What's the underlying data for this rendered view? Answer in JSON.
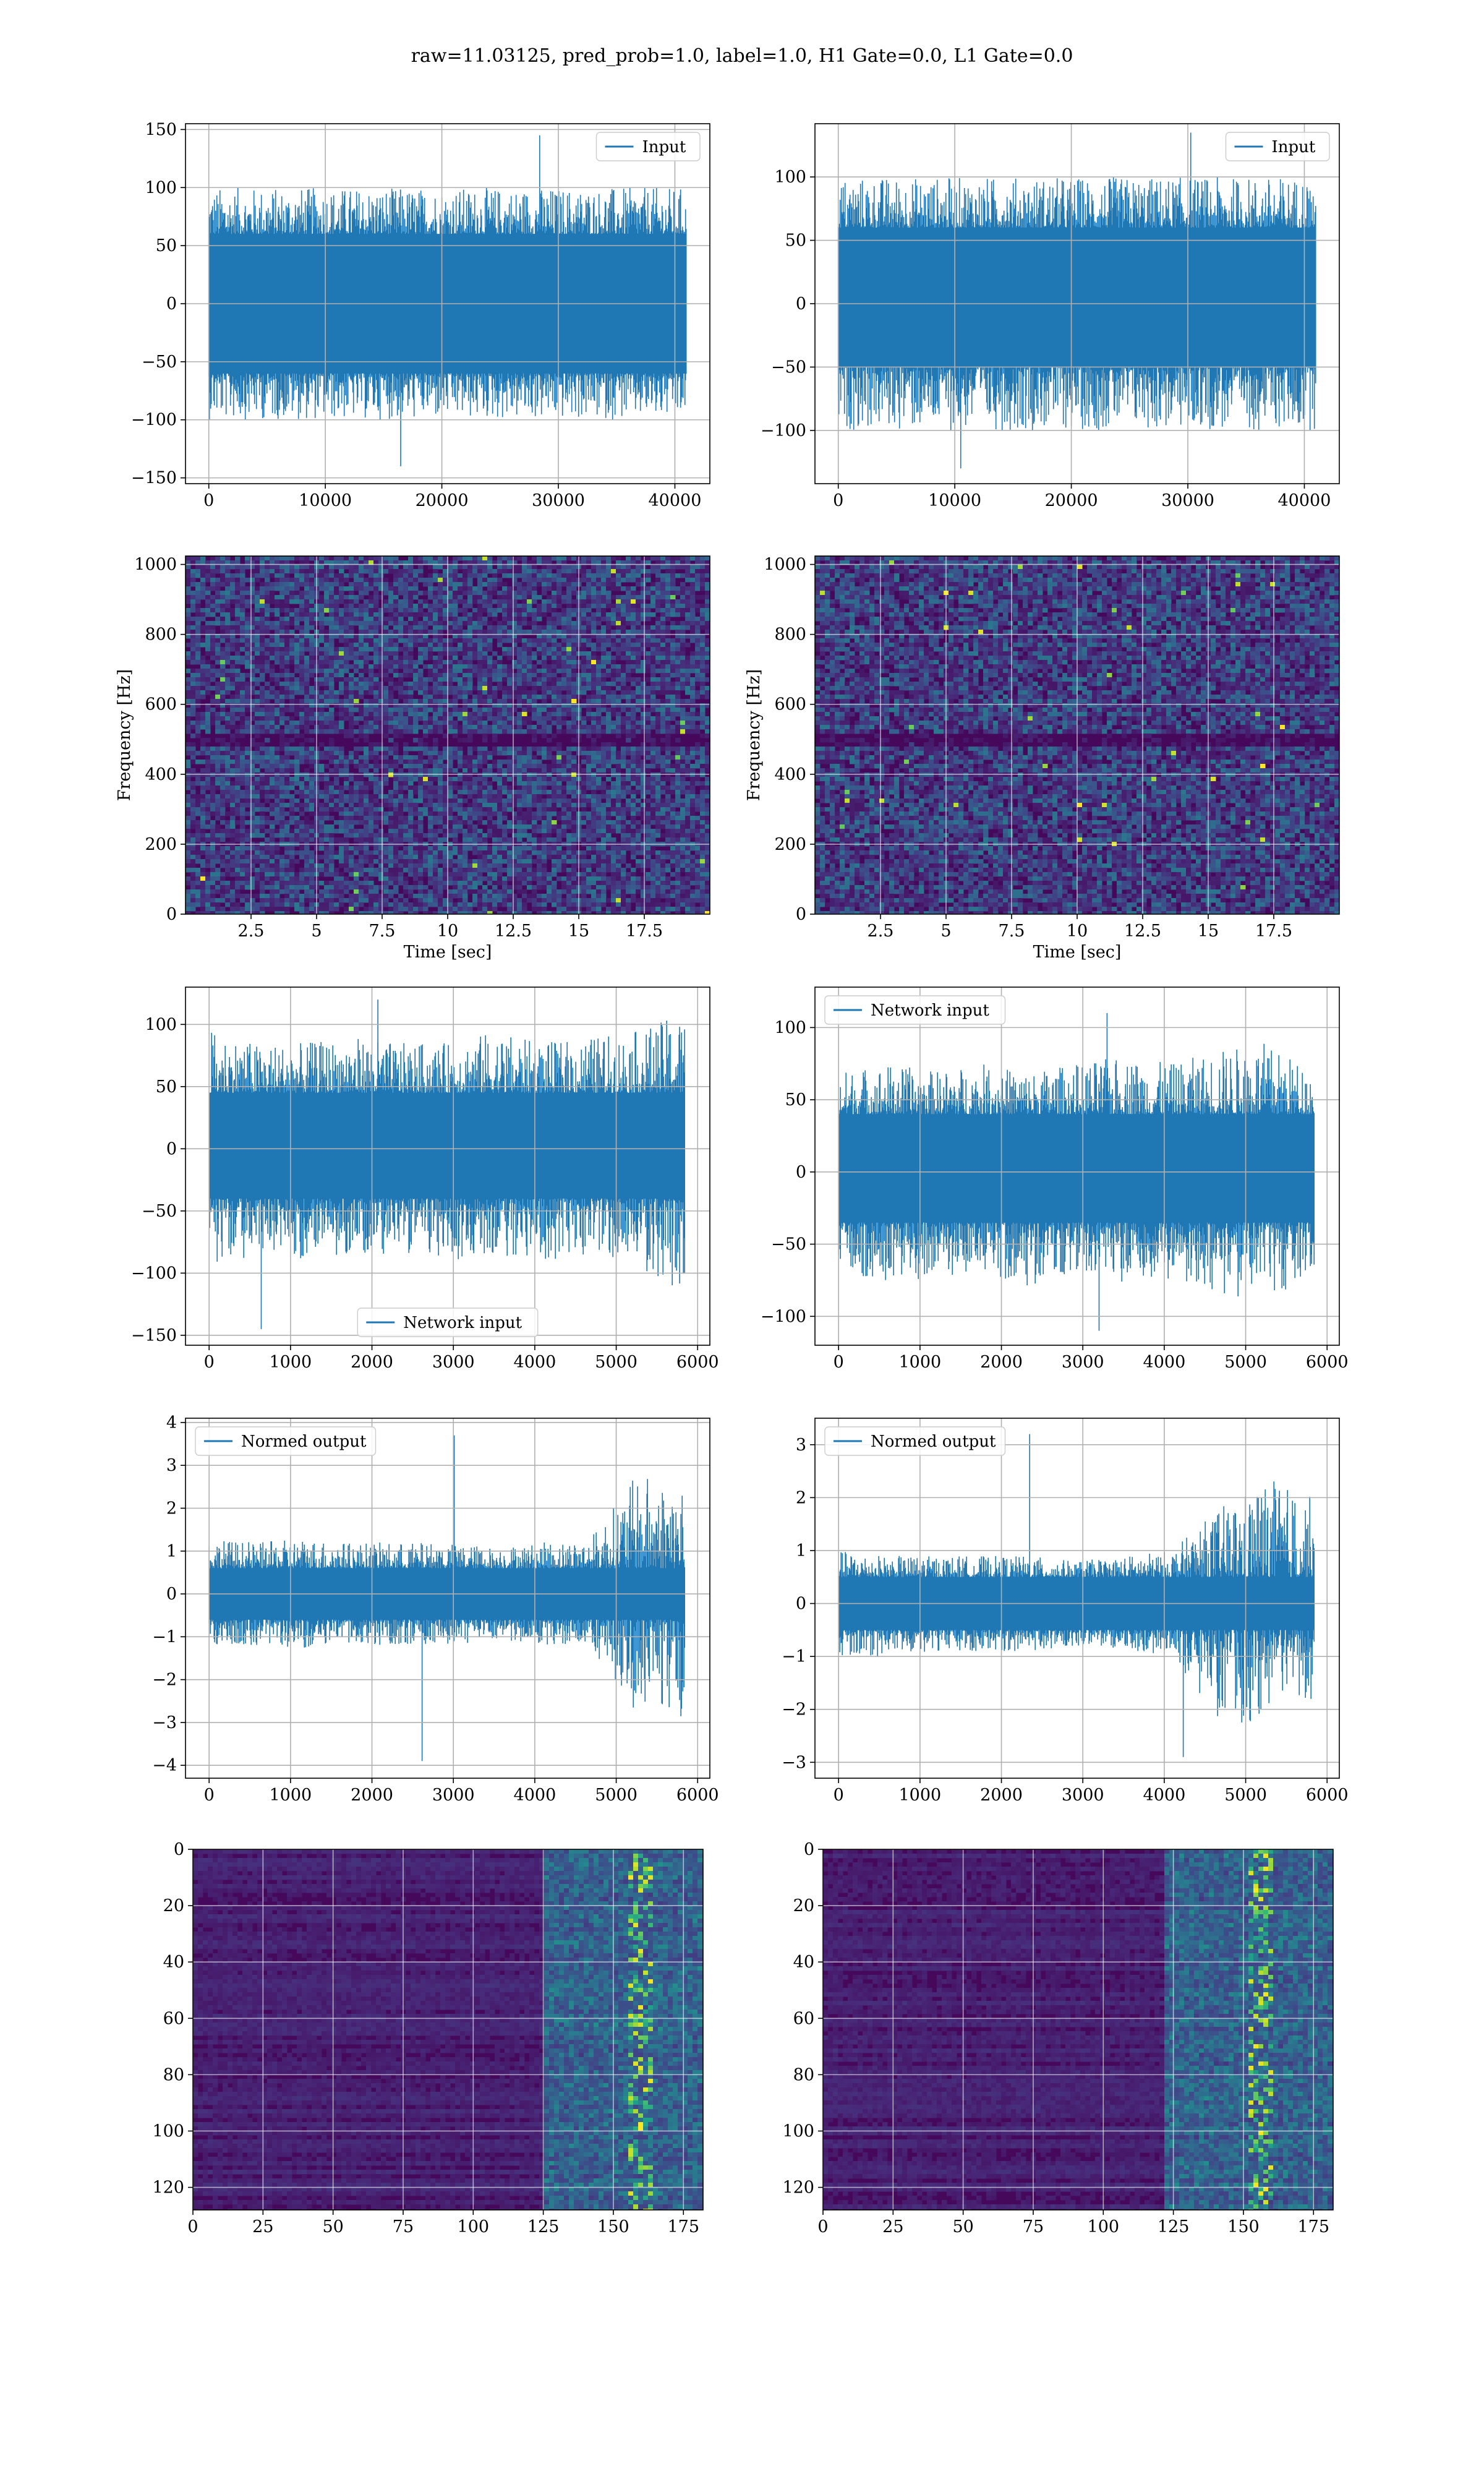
{
  "figure": {
    "suptitle": "raw=11.03125, pred_prob=1.0, label=1.0, H1 Gate=0.0, L1 Gate=0.0",
    "line_color": "#1f77b4"
  },
  "chart_data": [
    {
      "id": "r0c0",
      "type": "line",
      "title": "",
      "xlabel": "",
      "ylabel": "",
      "legend": "Input",
      "legend_loc": "upper right",
      "xlim": [
        -2000,
        43000
      ],
      "ylim": [
        -155,
        155
      ],
      "xticks": [
        0,
        10000,
        20000,
        30000,
        40000
      ],
      "yticks": [
        -150,
        -100,
        -50,
        0,
        50,
        100,
        150
      ],
      "grid": true,
      "series": [
        {
          "name": "Input",
          "x_range": [
            0,
            40960
          ],
          "n_points": 40960,
          "envelope_upper": [
            100,
            100,
            100,
            100,
            100,
            100,
            100,
            100,
            100,
            100,
            100
          ],
          "envelope_lower": [
            -100,
            -100,
            -100,
            -100,
            -100,
            -100,
            -100,
            -100,
            -100,
            -100,
            -100
          ],
          "body": [
            -60,
            60
          ],
          "peak_max": 145,
          "peak_min": -140
        }
      ]
    },
    {
      "id": "r0c1",
      "type": "line",
      "title": "",
      "xlabel": "",
      "ylabel": "",
      "legend": "Input",
      "legend_loc": "upper right",
      "xlim": [
        -2000,
        43000
      ],
      "ylim": [
        -142,
        142
      ],
      "xticks": [
        0,
        10000,
        20000,
        30000,
        40000
      ],
      "yticks": [
        -100,
        -50,
        0,
        50,
        100
      ],
      "grid": true,
      "series": [
        {
          "name": "Input",
          "x_range": [
            0,
            40960
          ],
          "n_points": 40960,
          "envelope_upper": [
            100,
            100,
            100,
            100,
            100,
            100,
            100,
            100,
            100,
            100,
            100
          ],
          "envelope_lower": [
            -100,
            -100,
            -100,
            -100,
            -100,
            -100,
            -100,
            -100,
            -100,
            -100,
            -100
          ],
          "body": [
            -50,
            60
          ],
          "peak_max": 135,
          "peak_min": -130
        }
      ]
    },
    {
      "id": "r1c0",
      "type": "heatmap",
      "title": "",
      "xlabel": "Time [sec]",
      "ylabel": "Frequency [Hz]",
      "xlim": [
        0,
        20
      ],
      "ylim": [
        0,
        1024
      ],
      "xticks": [
        2.5,
        5.0,
        7.5,
        10.0,
        12.5,
        15.0,
        17.5
      ],
      "yticks": [
        0,
        200,
        400,
        600,
        800,
        1000
      ],
      "grid": true,
      "colormap": "viridis",
      "features": {
        "dark_band_hz": 500
      }
    },
    {
      "id": "r1c1",
      "type": "heatmap",
      "title": "",
      "xlabel": "Time [sec]",
      "ylabel": "Frequency [Hz]",
      "xlim": [
        0,
        20
      ],
      "ylim": [
        0,
        1024
      ],
      "xticks": [
        2.5,
        5.0,
        7.5,
        10.0,
        12.5,
        15.0,
        17.5
      ],
      "yticks": [
        0,
        200,
        400,
        600,
        800,
        1000
      ],
      "grid": true,
      "colormap": "viridis",
      "features": {
        "dark_band_hz": 500
      }
    },
    {
      "id": "r2c0",
      "type": "line",
      "title": "",
      "xlabel": "",
      "ylabel": "",
      "legend": "Network input",
      "legend_loc": "lower center",
      "xlim": [
        -290,
        6150
      ],
      "ylim": [
        -158,
        130
      ],
      "xticks": [
        0,
        1000,
        2000,
        3000,
        4000,
        5000,
        6000
      ],
      "yticks": [
        -150,
        -100,
        -50,
        0,
        50,
        100
      ],
      "grid": true,
      "series": [
        {
          "name": "Network input",
          "x_range": [
            0,
            5840
          ],
          "n_points": 5840,
          "envelope_upper": [
            95,
            85,
            85,
            90,
            85,
            85,
            95,
            85,
            90,
            95,
            110
          ],
          "envelope_lower": [
            -95,
            -85,
            -90,
            -85,
            -85,
            -90,
            -85,
            -90,
            -85,
            -95,
            -120
          ],
          "body": [
            -40,
            45
          ],
          "peak_max": 120,
          "peak_min": -145
        }
      ]
    },
    {
      "id": "r2c1",
      "type": "line",
      "title": "",
      "xlabel": "",
      "ylabel": "",
      "legend": "Network input",
      "legend_loc": "upper left",
      "xlim": [
        -290,
        6150
      ],
      "ylim": [
        -120,
        128
      ],
      "xticks": [
        0,
        1000,
        2000,
        3000,
        4000,
        5000,
        6000
      ],
      "yticks": [
        -100,
        -50,
        0,
        50,
        100
      ],
      "grid": true,
      "series": [
        {
          "name": "Network input",
          "x_range": [
            0,
            5840
          ],
          "n_points": 5840,
          "envelope_upper": [
            70,
            75,
            70,
            75,
            70,
            75,
            80,
            75,
            85,
            90,
            70
          ],
          "envelope_lower": [
            -70,
            -75,
            -75,
            -70,
            -80,
            -75,
            -80,
            -75,
            -85,
            -90,
            -70
          ],
          "body": [
            -35,
            40
          ],
          "peak_max": 110,
          "peak_min": -110
        }
      ]
    },
    {
      "id": "r3c0",
      "type": "line",
      "title": "",
      "xlabel": "",
      "ylabel": "",
      "legend": "Normed output",
      "legend_loc": "upper left",
      "xlim": [
        -290,
        6150
      ],
      "ylim": [
        -4.3,
        4.1
      ],
      "xticks": [
        0,
        1000,
        2000,
        3000,
        4000,
        5000,
        6000
      ],
      "yticks": [
        -4,
        -3,
        -2,
        -1,
        0,
        1,
        2,
        3,
        4
      ],
      "grid": true,
      "series": [
        {
          "name": "Normed output",
          "x_range": [
            0,
            5840
          ],
          "n_points": 5840,
          "envelope_upper": [
            1.3,
            1.2,
            1.3,
            1.2,
            1.2,
            1.2,
            1.1,
            1.2,
            1.3,
            2.8,
            2.7
          ],
          "envelope_lower": [
            -1.3,
            -1.2,
            -1.3,
            -1.2,
            -1.2,
            -1.2,
            -1.1,
            -1.2,
            -1.3,
            -2.8,
            -2.9
          ],
          "body": [
            -0.6,
            0.6
          ],
          "peak_max": 3.7,
          "peak_min": -3.9
        }
      ]
    },
    {
      "id": "r3c1",
      "type": "line",
      "title": "",
      "xlabel": "",
      "ylabel": "",
      "legend": "Normed output",
      "legend_loc": "upper left",
      "xlim": [
        -290,
        6150
      ],
      "ylim": [
        -3.3,
        3.5
      ],
      "xticks": [
        0,
        1000,
        2000,
        3000,
        4000,
        5000,
        6000
      ],
      "yticks": [
        -3,
        -2,
        -1,
        0,
        1,
        2,
        3
      ],
      "grid": true,
      "series": [
        {
          "name": "Normed output",
          "x_range": [
            0,
            5840
          ],
          "n_points": 5840,
          "envelope_upper": [
            1.0,
            0.9,
            0.9,
            0.9,
            0.9,
            0.8,
            0.9,
            1.0,
            1.8,
            2.4,
            2.0
          ],
          "envelope_lower": [
            -1.0,
            -1.0,
            -0.9,
            -0.9,
            -0.9,
            -0.8,
            -0.9,
            -1.0,
            -2.2,
            -2.3,
            -1.8
          ],
          "body": [
            -0.5,
            0.5
          ],
          "peak_max": 3.2,
          "peak_min": -2.9
        }
      ]
    },
    {
      "id": "r4c0",
      "type": "heatmap",
      "title": "",
      "xlabel": "",
      "ylabel": "",
      "xlim": [
        0,
        182
      ],
      "ylim": [
        128,
        0
      ],
      "xticks": [
        0,
        25,
        50,
        75,
        100,
        125,
        150,
        175
      ],
      "yticks": [
        0,
        20,
        40,
        60,
        80,
        100,
        120
      ],
      "grid": true,
      "colormap": "viridis",
      "features": {
        "bright_region_x": [
          125,
          182
        ],
        "hotspot_x": 158
      }
    },
    {
      "id": "r4c1",
      "type": "heatmap",
      "title": "",
      "xlabel": "",
      "ylabel": "",
      "xlim": [
        0,
        182
      ],
      "ylim": [
        128,
        0
      ],
      "xticks": [
        0,
        25,
        50,
        75,
        100,
        125,
        150,
        175
      ],
      "yticks": [
        0,
        20,
        40,
        60,
        80,
        100,
        120
      ],
      "grid": true,
      "colormap": "viridis",
      "features": {
        "bright_region_x": [
          120,
          182
        ],
        "hotspot_x": 155
      }
    }
  ]
}
